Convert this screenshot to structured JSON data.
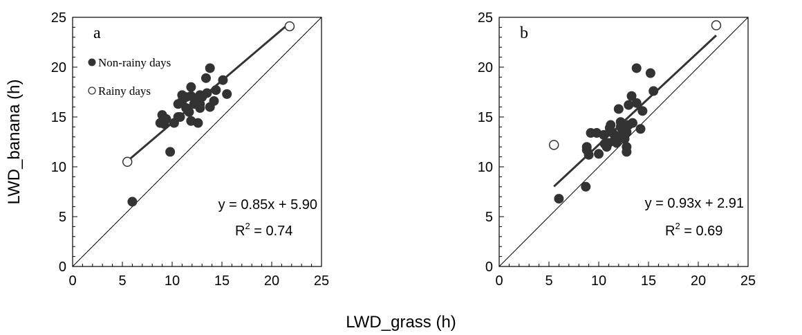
{
  "figure": {
    "xlabel": "LWD_grass (h)",
    "ylabel": "LWD_banana (h)"
  },
  "legend": {
    "non_rainy": "Non-rainy days",
    "rainy": "Rainy days"
  },
  "chart_data": [
    {
      "type": "scatter",
      "panel": "a",
      "xlim": [
        0,
        25
      ],
      "ylim": [
        0,
        25
      ],
      "xticks": [
        "0",
        "5",
        "10",
        "15",
        "20",
        "25"
      ],
      "yticks": [
        "0",
        "5",
        "10",
        "15",
        "20",
        "25"
      ],
      "equation": "y = 0.85x + 5.90",
      "r2_prefix": "R",
      "r2_sup": "2",
      "r2_value": " = 0.74",
      "fit": {
        "slope": 0.85,
        "intercept": 5.9,
        "x_range": [
          5.5,
          21.8
        ]
      },
      "one_to_one_line": true,
      "grid": false,
      "legend_position": "top-left",
      "series": [
        {
          "name": "Non-rainy days",
          "marker": "filled-circle",
          "points": [
            [
              6.0,
              6.5
            ],
            [
              9.8,
              11.5
            ],
            [
              8.8,
              14.4
            ],
            [
              9.0,
              14.5
            ],
            [
              9.2,
              14.3
            ],
            [
              9.0,
              15.2
            ],
            [
              9.4,
              14.8
            ],
            [
              10.2,
              14.4
            ],
            [
              10.6,
              15.0
            ],
            [
              10.8,
              15.0
            ],
            [
              10.6,
              16.3
            ],
            [
              11.0,
              16.6
            ],
            [
              11.0,
              17.2
            ],
            [
              11.4,
              17.0
            ],
            [
              11.4,
              15.9
            ],
            [
              11.7,
              15.5
            ],
            [
              11.9,
              18.0
            ],
            [
              11.9,
              17.1
            ],
            [
              11.9,
              14.6
            ],
            [
              12.2,
              16.9
            ],
            [
              12.2,
              16.3
            ],
            [
              12.6,
              14.4
            ],
            [
              12.8,
              15.9
            ],
            [
              12.8,
              16.3
            ],
            [
              12.8,
              17.2
            ],
            [
              13.0,
              17.0
            ],
            [
              13.4,
              18.9
            ],
            [
              13.5,
              17.4
            ],
            [
              13.8,
              19.9
            ],
            [
              13.8,
              16.0
            ],
            [
              14.2,
              16.6
            ],
            [
              14.4,
              17.7
            ],
            [
              15.1,
              18.7
            ],
            [
              15.5,
              17.3
            ]
          ]
        },
        {
          "name": "Rainy days",
          "marker": "open-circle",
          "points": [
            [
              5.5,
              10.5
            ],
            [
              21.8,
              24.1
            ]
          ]
        }
      ]
    },
    {
      "type": "scatter",
      "panel": "b",
      "xlim": [
        0,
        25
      ],
      "ylim": [
        0,
        25
      ],
      "xticks": [
        "0",
        "5",
        "10",
        "15",
        "20",
        "25"
      ],
      "yticks": [
        "0",
        "5",
        "10",
        "15",
        "20",
        "25"
      ],
      "equation": "y = 0.93x + 2.91",
      "r2_prefix": "R",
      "r2_sup": "2",
      "r2_value": " = 0.69",
      "fit": {
        "slope": 0.93,
        "intercept": 2.91,
        "x_range": [
          5.5,
          21.8
        ]
      },
      "one_to_one_line": true,
      "grid": false,
      "series": [
        {
          "marker": "filled-circle",
          "points": [
            [
              6.0,
              6.8
            ],
            [
              8.7,
              8.0
            ],
            [
              8.8,
              11.7
            ],
            [
              8.8,
              12.0
            ],
            [
              9.0,
              11.2
            ],
            [
              9.2,
              13.4
            ],
            [
              9.8,
              13.4
            ],
            [
              10.0,
              11.3
            ],
            [
              10.5,
              13.2
            ],
            [
              10.6,
              12.3
            ],
            [
              10.8,
              12.0
            ],
            [
              11.0,
              12.4
            ],
            [
              11.1,
              13.9
            ],
            [
              11.2,
              14.2
            ],
            [
              11.4,
              13.4
            ],
            [
              11.6,
              12.7
            ],
            [
              11.8,
              12.4
            ],
            [
              12.0,
              15.8
            ],
            [
              12.0,
              13.1
            ],
            [
              12.2,
              14.5
            ],
            [
              12.2,
              14.0
            ],
            [
              12.4,
              13.7
            ],
            [
              12.6,
              12.8
            ],
            [
              12.8,
              13.5
            ],
            [
              12.8,
              12.0
            ],
            [
              12.8,
              11.5
            ],
            [
              13.0,
              16.2
            ],
            [
              13.0,
              14.2
            ],
            [
              13.3,
              17.1
            ],
            [
              13.4,
              14.4
            ],
            [
              13.8,
              19.9
            ],
            [
              13.8,
              16.4
            ],
            [
              14.2,
              13.8
            ],
            [
              14.4,
              15.6
            ],
            [
              15.2,
              19.4
            ],
            [
              15.5,
              17.6
            ]
          ]
        },
        {
          "marker": "open-circle",
          "points": [
            [
              5.5,
              12.2
            ],
            [
              21.8,
              24.2
            ]
          ]
        }
      ]
    }
  ]
}
